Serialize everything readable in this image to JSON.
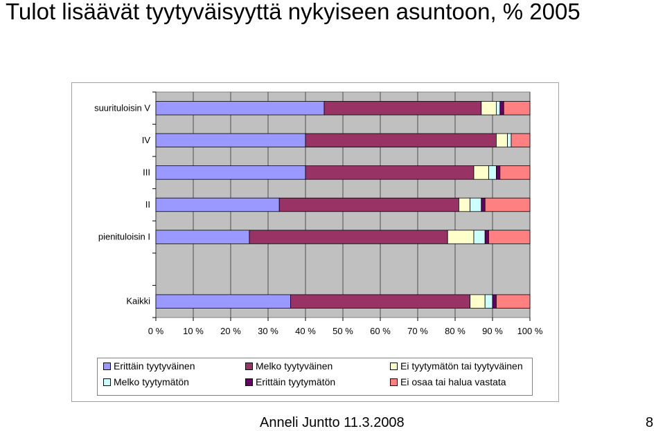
{
  "page": {
    "title": "Tulot lisäävät tyytyväisyyttä nykyiseen asuntoon, % 2005",
    "footer": "Anneli Juntto 11.3.2008",
    "page_number": "8"
  },
  "chart_data": {
    "type": "bar",
    "orientation": "horizontal",
    "stacked": "percent",
    "categories": [
      "suurituloisin V",
      "IV",
      "III",
      "II",
      "pienituloisin I",
      "",
      "Kaikki"
    ],
    "series": [
      {
        "name": "Erittäin tyytyväinen",
        "color": "#9999ff",
        "values": [
          45,
          40,
          40,
          33,
          25,
          null,
          36
        ]
      },
      {
        "name": "Melko tyytyväinen",
        "color": "#993366",
        "values": [
          42,
          51,
          45,
          48,
          53,
          null,
          48
        ]
      },
      {
        "name": "Ei tyytymätön tai tyytyväinen",
        "color": "#ffffcc",
        "values": [
          4,
          3,
          4,
          3,
          7,
          null,
          4
        ]
      },
      {
        "name": "Melko tyytymätön",
        "color": "#ccffff",
        "values": [
          1,
          1,
          2,
          3,
          3,
          null,
          2
        ]
      },
      {
        "name": "Erittäin tyytymätön",
        "color": "#660066",
        "values": [
          1,
          0,
          1,
          1,
          1,
          null,
          1
        ]
      },
      {
        "name": "Ei osaa tai halua vastata",
        "color": "#ff8080",
        "values": [
          7,
          5,
          8,
          12,
          11,
          null,
          9
        ]
      }
    ],
    "xlim": [
      0,
      100
    ],
    "xticks": [
      "0 %",
      "10 %",
      "20 %",
      "30 %",
      "40 %",
      "50 %",
      "60 %",
      "70 %",
      "80 %",
      "90 %",
      "100 %"
    ],
    "plot_background": "#c0c0c0",
    "grid": true,
    "legend_position": "bottom"
  }
}
